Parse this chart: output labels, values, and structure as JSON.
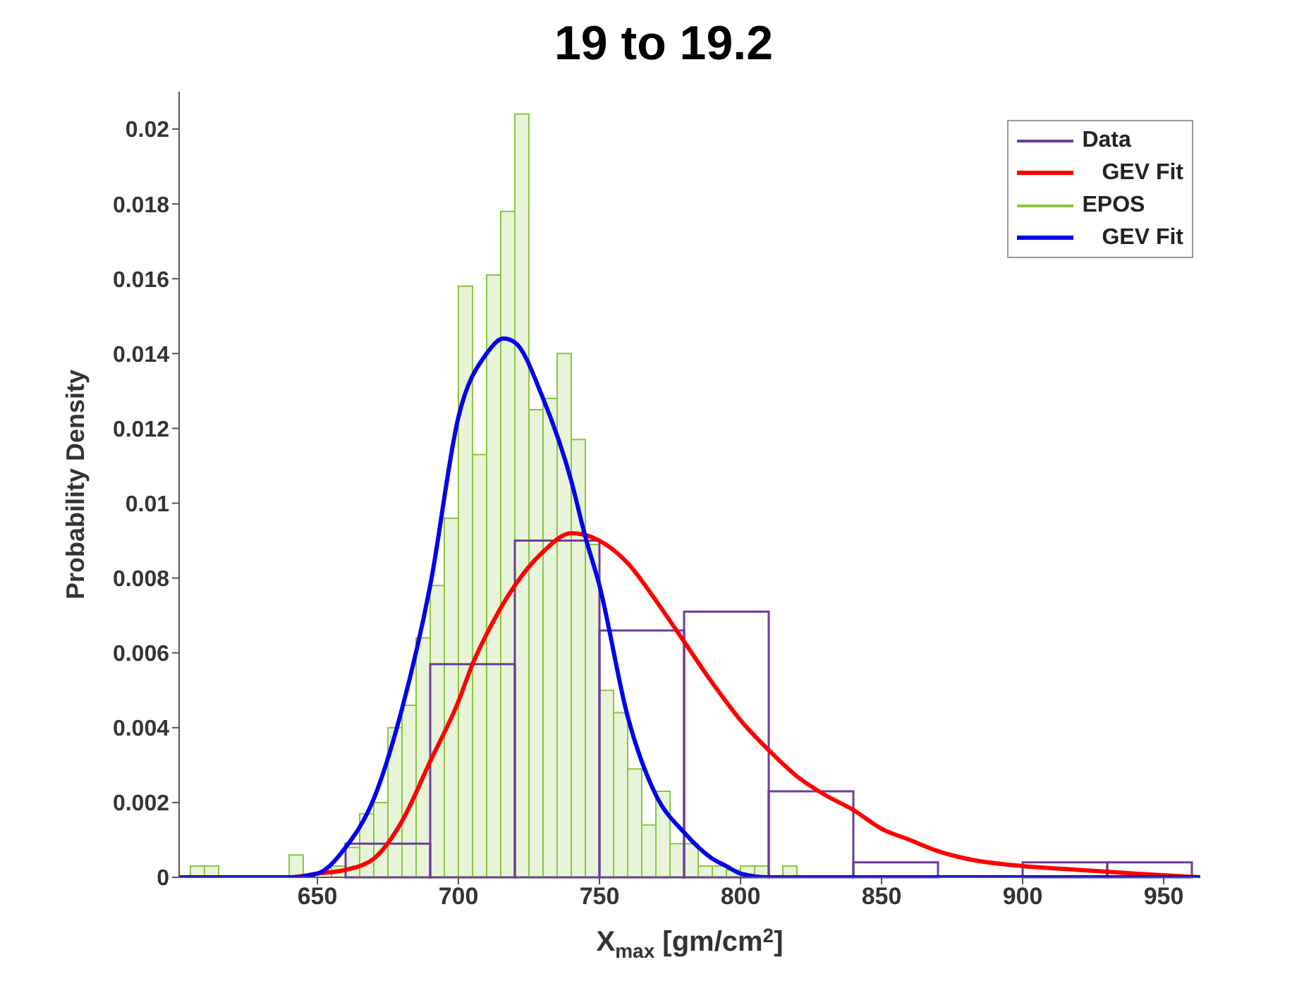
{
  "chart_data": {
    "type": "histogram",
    "title": "19 to 19.2",
    "xlabel": "X$_{max}$  [gm/cm$^{2}$]",
    "ylabel": "Probability Density",
    "xlim": [
      601,
      963
    ],
    "xticks": [
      650,
      700,
      750,
      800,
      850,
      900,
      950
    ],
    "ylim": [
      0,
      0.021
    ],
    "yticks": [
      0,
      0.002,
      0.004,
      0.006,
      0.008,
      0.01,
      0.012,
      0.014,
      0.016,
      0.018,
      0.02
    ],
    "grid": false,
    "legend": "top right",
    "series": [
      {
        "name": "Data",
        "color": "#6a3d9a",
        "bins": [
          660,
          690,
          720,
          750,
          780,
          810,
          840,
          870,
          900,
          930,
          960
        ],
        "values": [
          0.0009,
          0.0057,
          0.009,
          0.0066,
          0.0071,
          0.0023,
          0.0004,
          0,
          0.0004,
          0.0004
        ]
      },
      {
        "name": "GEV Fit",
        "type": "line",
        "color": "#ff0000",
        "x": [
          601,
          640,
          650,
          660,
          670,
          680,
          690,
          700,
          705,
          710,
          720,
          730,
          740,
          750,
          760,
          770,
          780,
          790,
          800,
          810,
          820,
          830,
          840,
          850,
          860,
          870,
          880,
          900,
          920,
          940,
          963
        ],
        "values": [
          0,
          0,
          0.0001,
          0.0002,
          0.0005,
          0.0015,
          0.0031,
          0.0047,
          0.0057,
          0.0065,
          0.0078,
          0.0087,
          0.0092,
          0.009,
          0.0084,
          0.0074,
          0.0063,
          0.0052,
          0.0042,
          0.0034,
          0.0027,
          0.0022,
          0.0018,
          0.0013,
          0.001,
          0.0007,
          0.0005,
          0.0003,
          0.0002,
          0.0001,
          0
        ]
      },
      {
        "name": "EPOS",
        "color": "#8cc63f",
        "bins": [
          605,
          610,
          615,
          620,
          625,
          630,
          635,
          640,
          645,
          650,
          655,
          660,
          665,
          670,
          675,
          680,
          685,
          690,
          695,
          700,
          705,
          710,
          715,
          720,
          725,
          730,
          735,
          740,
          745,
          750,
          755,
          760,
          765,
          770,
          775,
          780,
          785,
          790,
          795,
          800,
          805,
          810,
          815,
          820
        ],
        "values": [
          0.0003,
          0.0003,
          0,
          0,
          0,
          0,
          0,
          0.0006,
          0,
          0,
          0.0003,
          0.0008,
          0.0017,
          0.002,
          0.004,
          0.0046,
          0.0064,
          0.0078,
          0.0096,
          0.0158,
          0.0113,
          0.0161,
          0.0178,
          0.0204,
          0.0125,
          0.0128,
          0.014,
          0.0117,
          0.0089,
          0.005,
          0.0044,
          0.0029,
          0.0014,
          0.0023,
          0.0009,
          0.0009,
          0.0003,
          0.0003,
          0.0002,
          0.0003,
          0.0003,
          0,
          0.0003
        ]
      },
      {
        "name": "GEV Fit",
        "type": "line",
        "color": "#0000ee",
        "x": [
          601,
          640,
          650,
          660,
          670,
          680,
          690,
          700,
          710,
          716,
          720,
          730,
          740,
          745,
          750,
          760,
          770,
          780,
          790,
          795,
          800,
          810,
          963
        ],
        "values": [
          0,
          0,
          0.0001,
          0.0008,
          0.0021,
          0.0045,
          0.0078,
          0.0123,
          0.014,
          0.0144,
          0.0143,
          0.0128,
          0.0106,
          0.0091,
          0.0078,
          0.0043,
          0.0022,
          0.0012,
          0.0005,
          0.0003,
          0.0001,
          0,
          0
        ]
      }
    ]
  }
}
